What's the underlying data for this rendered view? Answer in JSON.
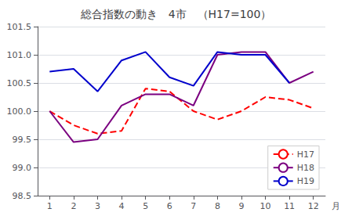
{
  "chart_data": {
    "type": "line",
    "title": "総合指数の動き　4市　（H17=100）",
    "xlabel": "月",
    "x": [
      1,
      2,
      3,
      4,
      5,
      6,
      7,
      8,
      9,
      10,
      11,
      12
    ],
    "series": [
      {
        "name": "H17",
        "color": "#ff0000",
        "line_style": "dashed",
        "values": [
          100.0,
          99.75,
          99.6,
          99.65,
          100.4,
          100.35,
          100.0,
          99.85,
          100.0,
          100.25,
          100.2,
          100.05
        ]
      },
      {
        "name": "H18",
        "color": "#7b0080",
        "line_style": "solid",
        "values": [
          100.0,
          99.45,
          99.5,
          100.1,
          100.3,
          100.3,
          100.1,
          101.0,
          101.05,
          101.05,
          100.5,
          100.7
        ]
      },
      {
        "name": "H19",
        "color": "#0000cc",
        "line_style": "solid",
        "values": [
          100.7,
          100.75,
          100.35,
          100.9,
          101.05,
          100.6,
          100.45,
          101.05,
          101.0,
          101.0,
          100.5,
          null
        ]
      }
    ],
    "xlim": [
      0.5,
      12.5
    ],
    "xticks": [
      1,
      2,
      3,
      4,
      5,
      6,
      7,
      8,
      9,
      10,
      11,
      12
    ],
    "ylim": [
      98.5,
      101.5
    ],
    "yticks": [
      98.5,
      {
        "value": 99,
        "label": "99.0"
      },
      99.5,
      {
        "value": 100,
        "label": "100.0"
      },
      100.5,
      {
        "value": 101,
        "label": "101.0"
      },
      101.5
    ],
    "grid": "y",
    "legend": "lower right"
  }
}
